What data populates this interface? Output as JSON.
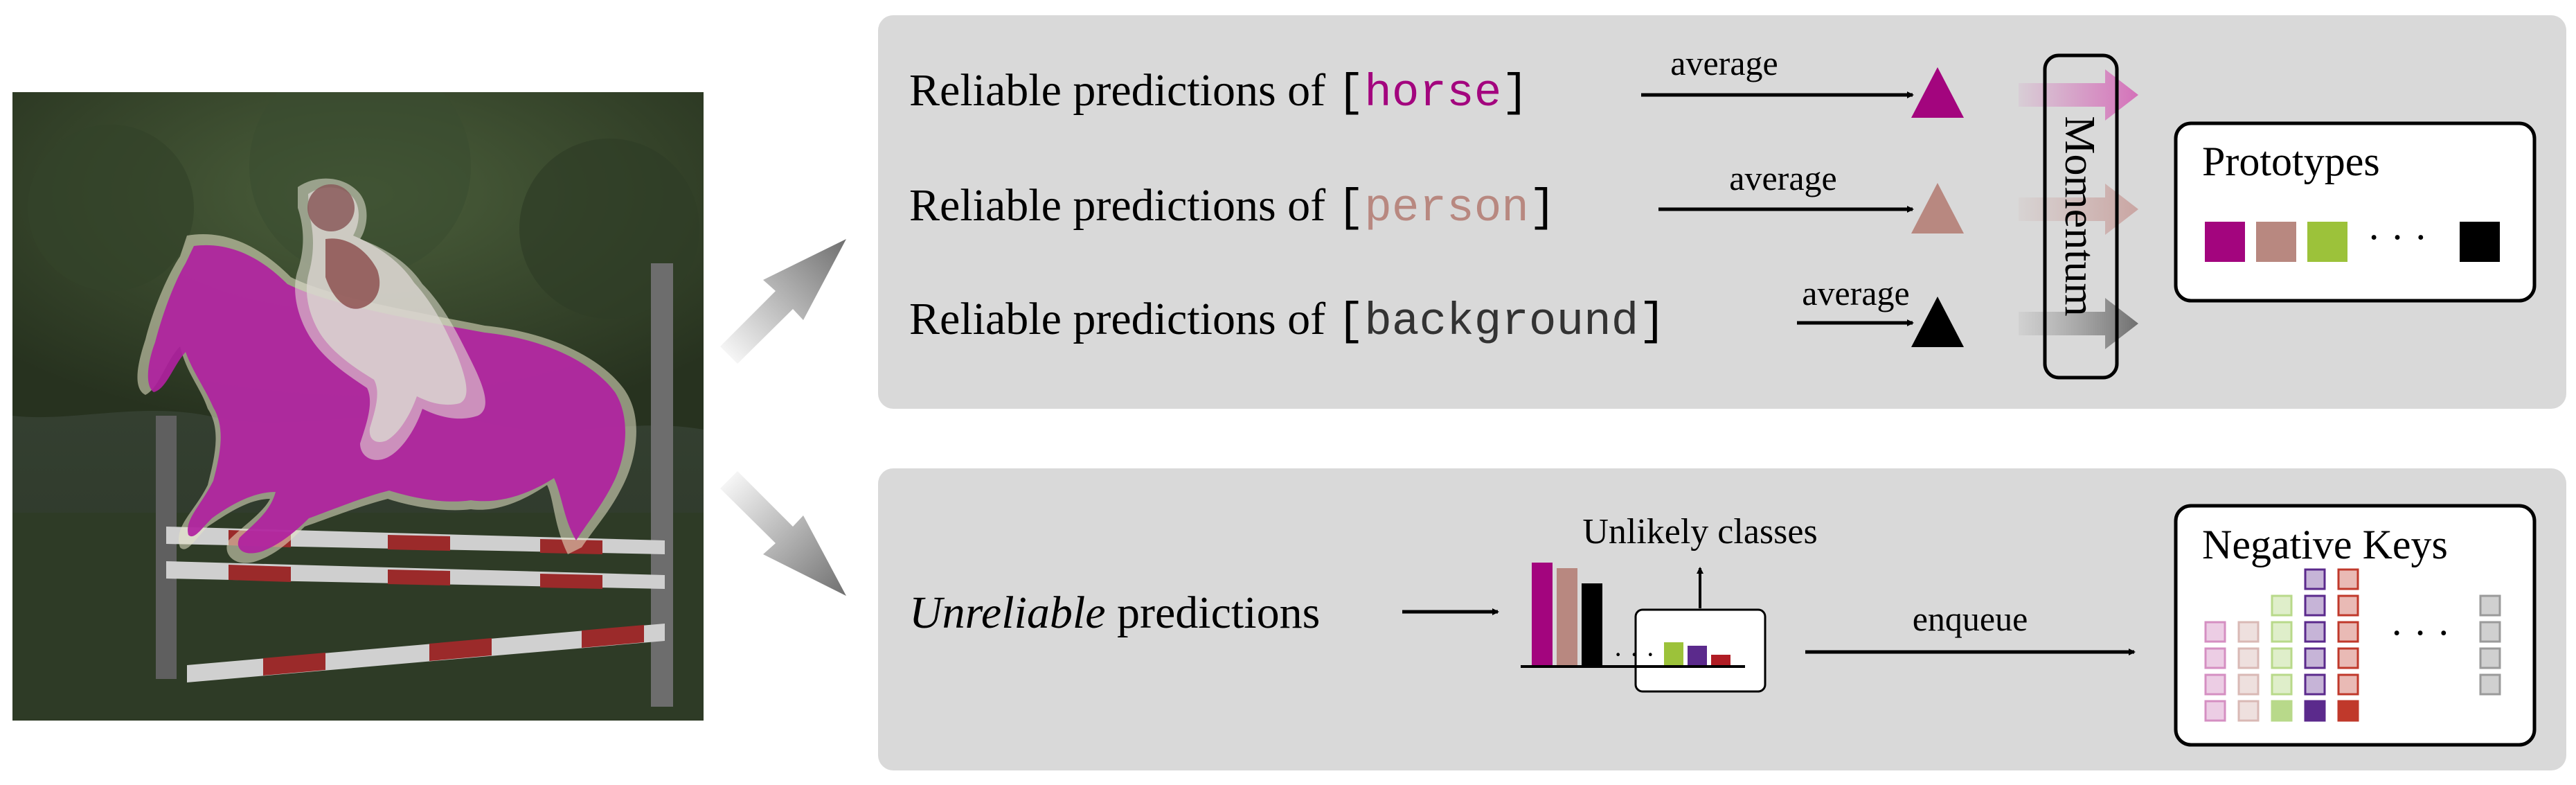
{
  "top_panel": {
    "rows": [
      {
        "prefix": "Reliable predictions of ",
        "open_bracket": "[",
        "class_name": "horse",
        "close_bracket": "]",
        "arrow_label": "average",
        "color": "#a3057e"
      },
      {
        "prefix": "Reliable predictions of ",
        "open_bracket": "[",
        "class_name": "person",
        "close_bracket": "]",
        "arrow_label": "average",
        "color": "#b88880"
      },
      {
        "prefix": "Reliable predictions of ",
        "open_bracket": "[",
        "class_name": "background",
        "close_bracket": "]",
        "arrow_label": "average",
        "color": "#222222"
      }
    ],
    "momentum_label": "Momentum",
    "prototypes_title": "Prototypes",
    "prototype_colors": [
      "#a3057e",
      "#b88880",
      "#9cc23a",
      "#000000"
    ],
    "ellipsis": "· · ·"
  },
  "bottom_panel": {
    "unreliable_word": "Unreliable",
    "predictions_word": " predictions",
    "unlikely_label": "Unlikely classes",
    "hist_ellipsis": "· · ·",
    "enqueue_label": "enqueue",
    "negative_keys_title": "Negative Keys",
    "bar_colors": [
      "#a3057e",
      "#b88880",
      "#000000",
      "#9cc23a",
      "#5b2a8c",
      "#b01c24"
    ],
    "key_column_colors": [
      "#d58fc2",
      "#d9b9b5",
      "#b8d98a",
      "#5b2a8c",
      "#c0392b"
    ],
    "key_last_color": "#9a9a9a",
    "ellipsis": "· · ·"
  },
  "colors": {
    "panel": "#d9d9d9",
    "horse": "#a3057e",
    "person": "#b88880",
    "green": "#9cc23a",
    "purple": "#5b2a8c",
    "red": "#b01c24"
  }
}
